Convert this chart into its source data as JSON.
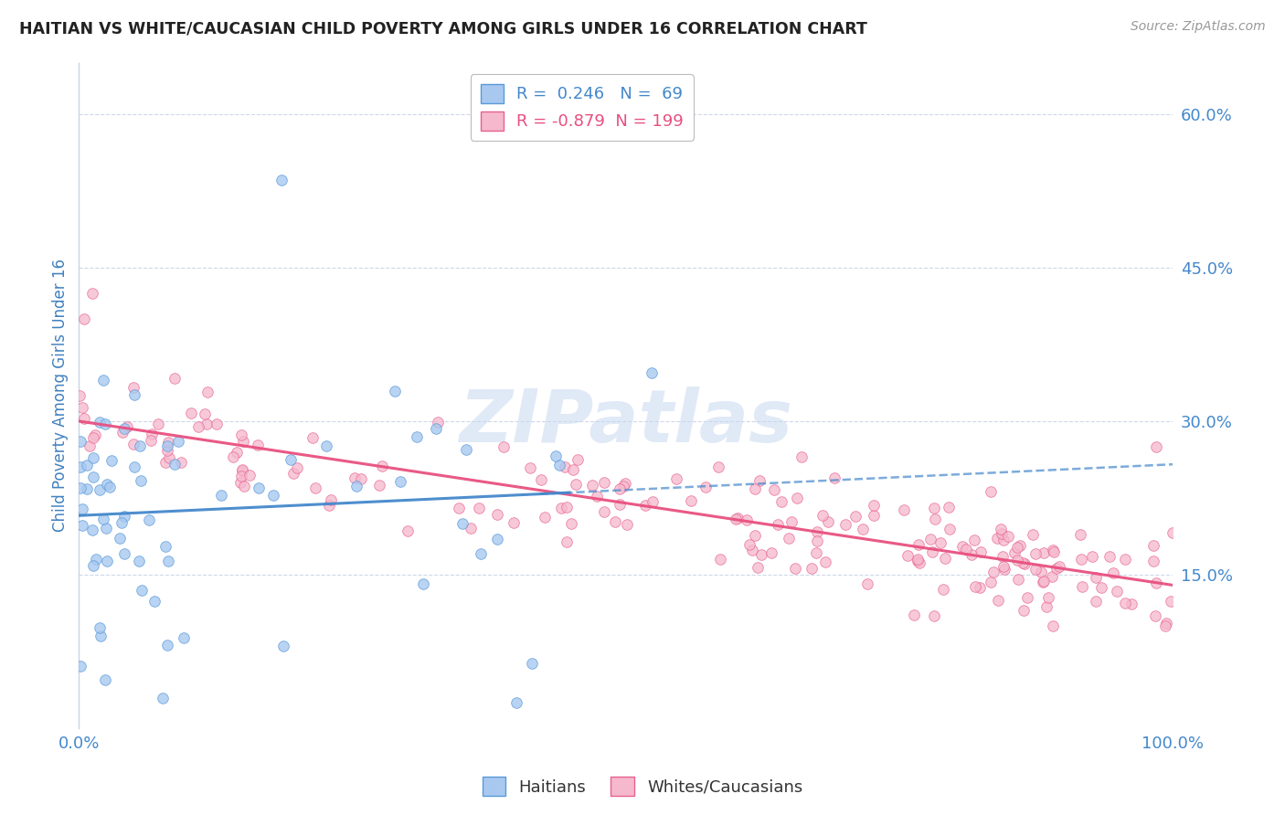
{
  "title": "HAITIAN VS WHITE/CAUCASIAN CHILD POVERTY AMONG GIRLS UNDER 16 CORRELATION CHART",
  "source": "Source: ZipAtlas.com",
  "ylabel": "Child Poverty Among Girls Under 16",
  "xlim": [
    0.0,
    1.0
  ],
  "ylim": [
    0.0,
    0.65
  ],
  "yticks_right": [
    0.15,
    0.3,
    0.45,
    0.6
  ],
  "yticklabels_right": [
    "15.0%",
    "30.0%",
    "45.0%",
    "60.0%"
  ],
  "haitian_color": "#A8C8F0",
  "white_color": "#F5B8CC",
  "haitian_edge_color": "#5A9AD8",
  "white_edge_color": "#E86090",
  "haitian_line_color": "#4488CC",
  "white_line_color": "#E85080",
  "haitian_R": 0.246,
  "haitian_N": 69,
  "white_R": -0.879,
  "white_N": 199,
  "watermark": "ZIPatlas",
  "watermark_color": "#C8D8F0",
  "background_color": "#FFFFFF",
  "grid_color": "#C8D4E8",
  "title_color": "#222222",
  "axis_label_color": "#4080C0",
  "tick_color": "#4488CC"
}
